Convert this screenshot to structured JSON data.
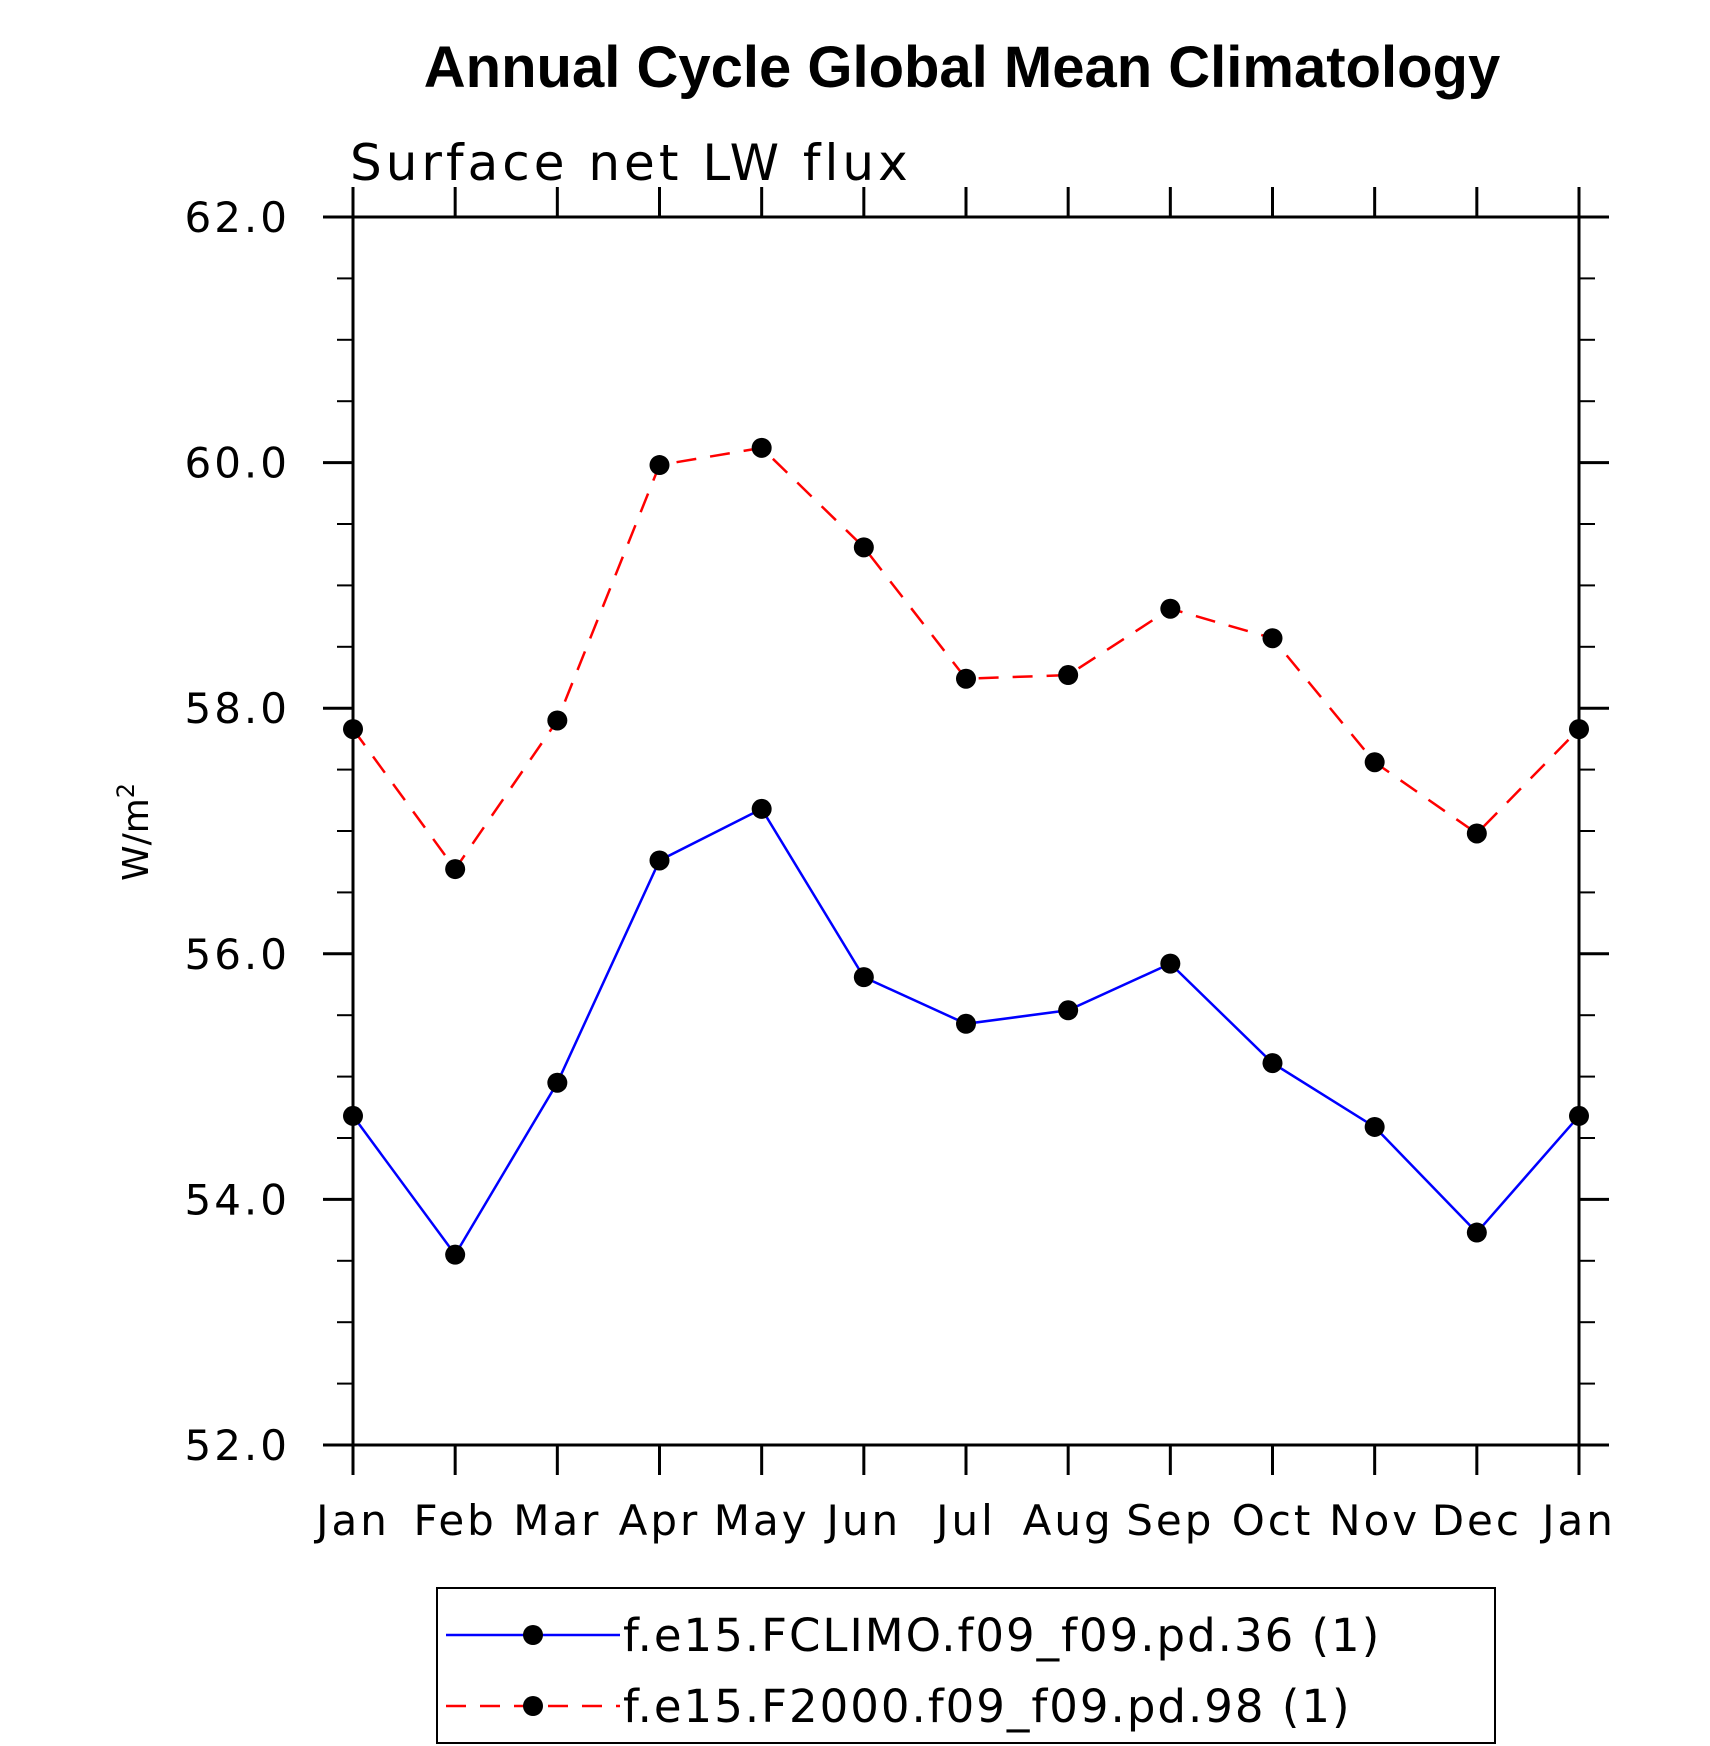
{
  "chart_data": {
    "type": "line",
    "title": "Annual Cycle Global Mean Climatology",
    "subtitle": "Surface net LW flux",
    "xlabel": "",
    "ylabel": "W/m",
    "ylabel_superscript": "2",
    "ylim": [
      52.0,
      62.0
    ],
    "yticks": [
      "52.0",
      "54.0",
      "56.0",
      "58.0",
      "60.0",
      "62.0"
    ],
    "categories": [
      "Jan",
      "Feb",
      "Mar",
      "Apr",
      "May",
      "Jun",
      "Jul",
      "Aug",
      "Sep",
      "Oct",
      "Nov",
      "Dec",
      "Jan"
    ],
    "series": [
      {
        "name": "f.e15.FCLIMO.f09_f09.pd.36 (1)",
        "color": "#0000ff",
        "dash": "solid",
        "values": [
          54.68,
          53.55,
          54.95,
          56.76,
          57.18,
          55.81,
          55.43,
          55.54,
          55.92,
          55.11,
          54.59,
          53.73,
          54.68
        ]
      },
      {
        "name": "f.e15.F2000.f09_f09.pd.98 (1)",
        "color": "#ff0000",
        "dash": "dashed",
        "values": [
          57.83,
          56.69,
          57.9,
          59.98,
          60.12,
          59.31,
          58.24,
          58.27,
          58.81,
          58.57,
          57.56,
          56.98,
          57.83
        ]
      }
    ],
    "legend_position": "bottom-center"
  }
}
